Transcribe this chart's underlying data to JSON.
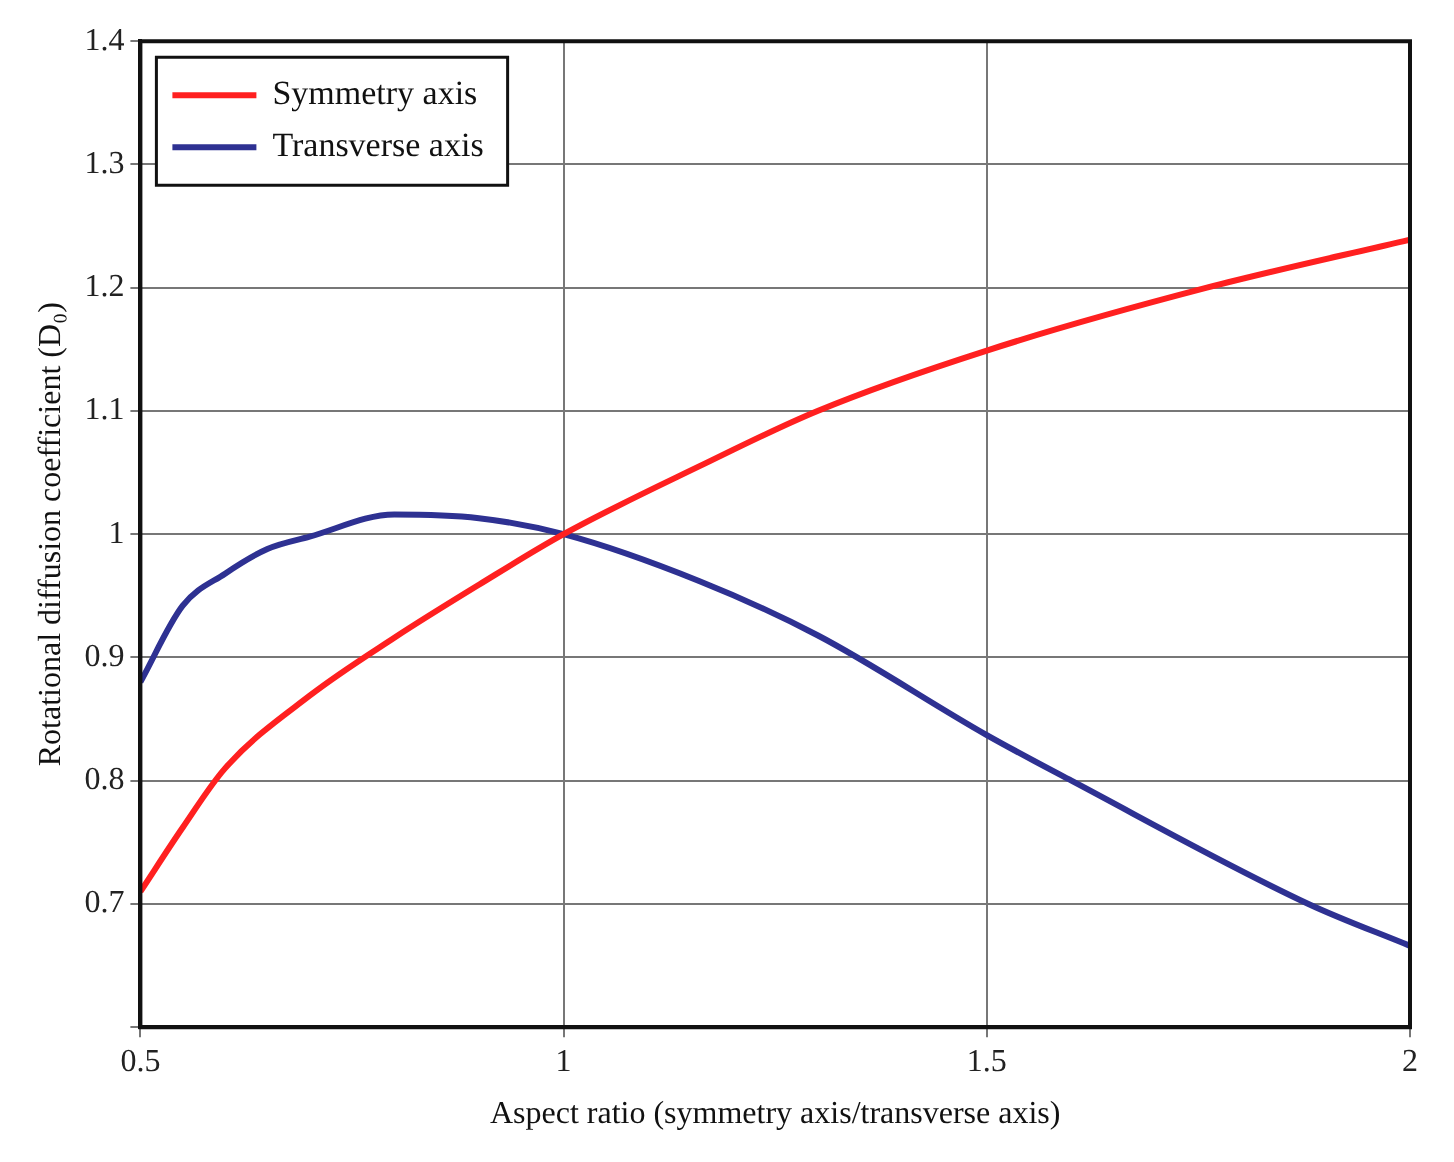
{
  "chart_data": {
    "type": "line",
    "xlabel": "Aspect ratio (symmetry axis/transverse axis)",
    "ylabel": "Rotational diffusion coefficient (D₀)",
    "xlim": [
      0.5,
      2
    ],
    "xticks": [
      0.5,
      1,
      1.5,
      2
    ],
    "ylim": [
      0.6,
      1.4
    ],
    "yticks": [
      {
        "value": 0.6,
        "label": null
      },
      0.7,
      0.8,
      0.9,
      1,
      1.1,
      1.2,
      1.3,
      1.4
    ],
    "grid": true,
    "legend": "top left",
    "marker": "none",
    "line_style": "solid",
    "series": [
      {
        "name": "Symmetry axis",
        "color": "#ff2020",
        "x": [
          0.5,
          0.55,
          0.6,
          0.7,
          0.8,
          0.9,
          1,
          1.16,
          1.3,
          1.5,
          1.76,
          2
        ],
        "values": [
          0.71,
          0.762,
          0.81,
          0.869,
          0.916,
          0.959,
          1,
          1.055,
          1.1,
          1.149,
          1.2,
          1.239
        ]
      },
      {
        "name": "Transverse axis",
        "color": "#2e3192",
        "x": [
          0.5,
          0.55,
          0.6,
          0.65,
          0.7,
          0.8,
          0.9,
          1,
          1.16,
          1.3,
          1.5,
          1.6,
          1.88,
          2
        ],
        "values": [
          0.88,
          0.942,
          0.968,
          0.988,
          0.998,
          1.016,
          1.013,
          1,
          0.962,
          0.918,
          0.837,
          0.8,
          0.7,
          0.666
        ]
      }
    ]
  }
}
